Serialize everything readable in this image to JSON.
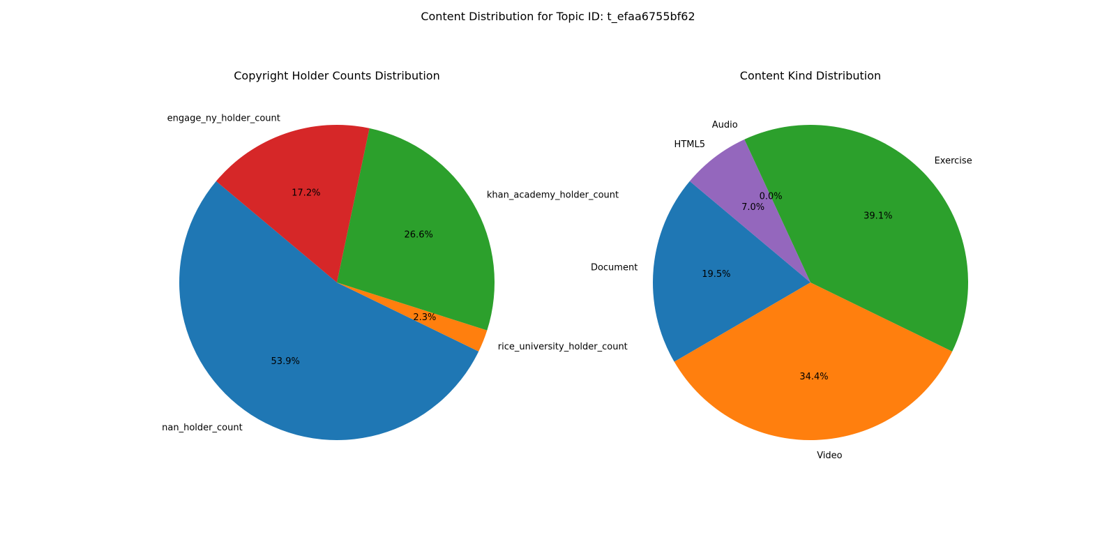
{
  "figure": {
    "suptitle": "Content Distribution for Topic ID: t_efaa6755bf62"
  },
  "chart_data": [
    {
      "type": "pie",
      "title": "Copyright Holder Counts Distribution",
      "start_angle_deg": 140,
      "direction": "counterclockwise",
      "slices": [
        {
          "label": "nan_holder_count",
          "pct": 53.9,
          "pct_label": "53.9%",
          "color": "#1f77b4"
        },
        {
          "label": "rice_university_holder_count",
          "pct": 2.3,
          "pct_label": "2.3%",
          "color": "#ff7f0e"
        },
        {
          "label": "khan_academy_holder_count",
          "pct": 26.6,
          "pct_label": "26.6%",
          "color": "#2ca02c"
        },
        {
          "label": "engage_ny_holder_count",
          "pct": 17.2,
          "pct_label": "17.2%",
          "color": "#d62728"
        }
      ]
    },
    {
      "type": "pie",
      "title": "Content Kind Distribution",
      "start_angle_deg": 140,
      "direction": "counterclockwise",
      "slices": [
        {
          "label": "Document",
          "pct": 19.5,
          "pct_label": "19.5%",
          "color": "#1f77b4"
        },
        {
          "label": "Video",
          "pct": 34.4,
          "pct_label": "34.4%",
          "color": "#ff7f0e"
        },
        {
          "label": "Exercise",
          "pct": 39.1,
          "pct_label": "39.1%",
          "color": "#2ca02c"
        },
        {
          "label": "Audio",
          "pct": 0.0,
          "pct_label": "0.0%",
          "color": "#d62728"
        },
        {
          "label": "HTML5",
          "pct": 7.0,
          "pct_label": "7.0%",
          "color": "#9467bd"
        }
      ]
    }
  ]
}
